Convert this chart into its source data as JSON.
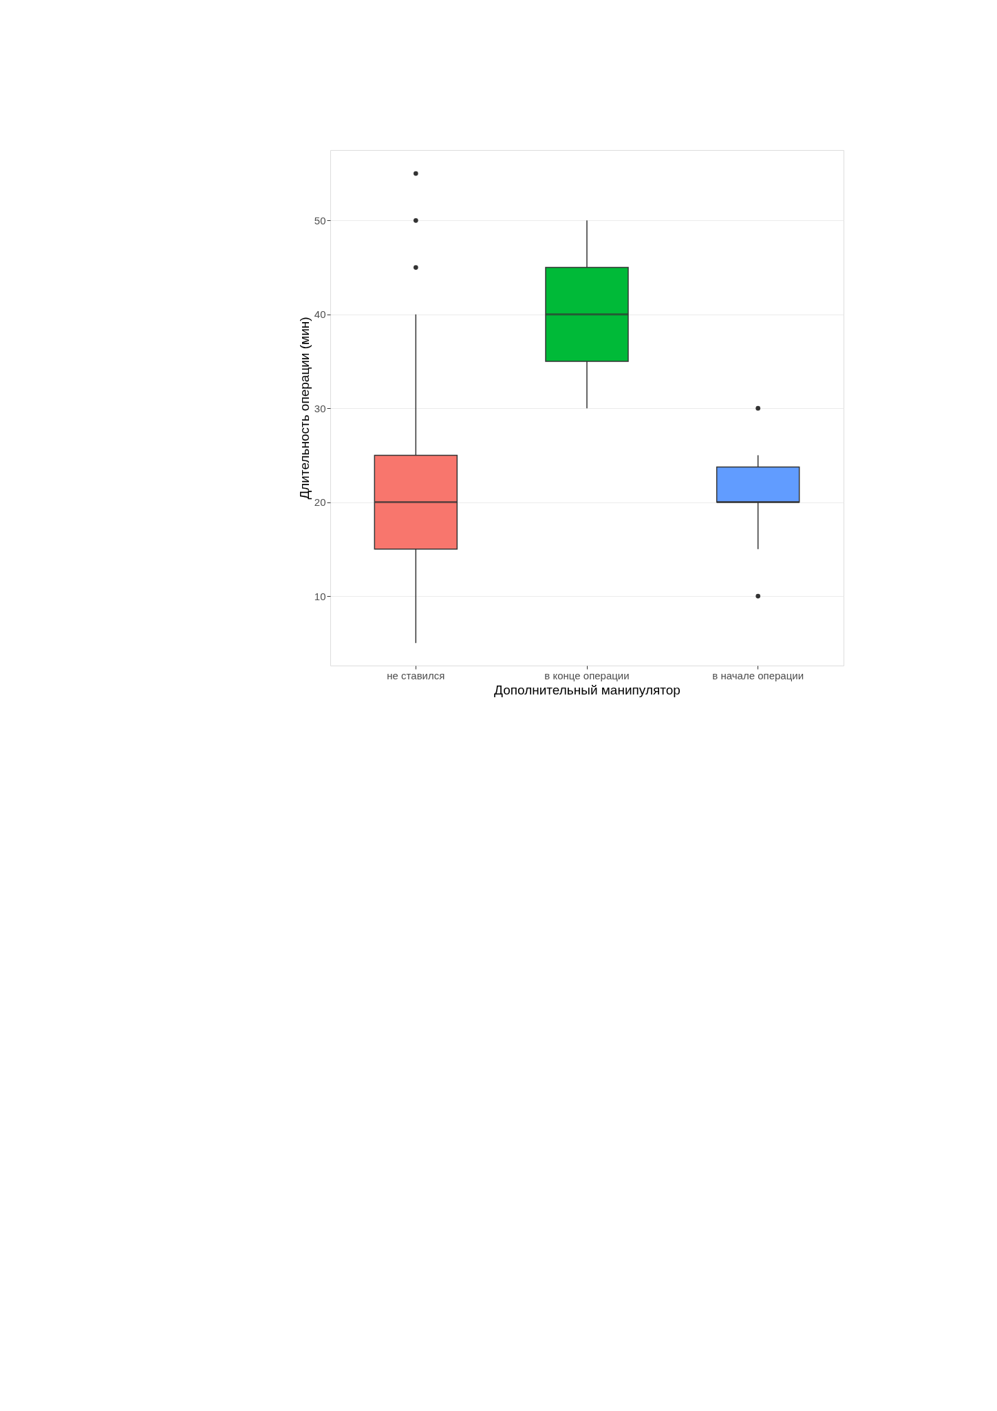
{
  "chart_data": {
    "type": "box",
    "xlabel": "Дополнительный манипулятор",
    "ylabel": "Длительность операции (мин)",
    "categories": [
      "не ставился",
      "в конце операции",
      "в начале операции"
    ],
    "colors": [
      "#f8766d",
      "#00ba38",
      "#619cff"
    ],
    "boxes": [
      {
        "low": 5,
        "q1": 15,
        "median": 20,
        "q3": 25,
        "high": 40,
        "outliers": [
          45,
          50,
          55
        ]
      },
      {
        "low": 30,
        "q1": 35,
        "median": 40,
        "q3": 45,
        "high": 50
      },
      {
        "low": 15,
        "q1": 20,
        "median": 20,
        "q3": 23.75,
        "high": 25,
        "outliers": [
          10,
          30
        ]
      }
    ],
    "ylim": [
      2.6,
      57.5
    ],
    "yticks": [
      10,
      20,
      30,
      40,
      50
    ],
    "grid": "y"
  }
}
